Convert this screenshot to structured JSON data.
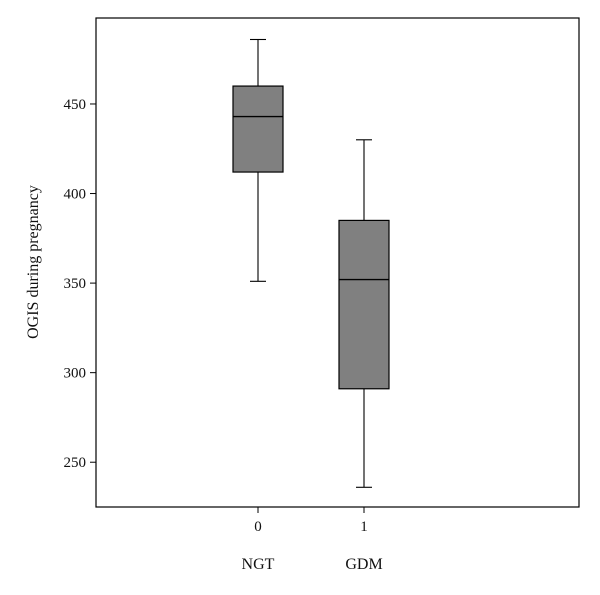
{
  "chart_data": {
    "type": "box",
    "ylabel": "OGIS during pregnancy",
    "ylim": [
      225,
      498
    ],
    "yticks": [
      250,
      300,
      350,
      400,
      450
    ],
    "categories": [
      {
        "code": "0",
        "name": "NGT",
        "min": 351,
        "q1": 412,
        "median": 443,
        "q3": 460,
        "max": 486
      },
      {
        "code": "1",
        "name": "GDM",
        "min": 236,
        "q1": 291,
        "median": 352,
        "q3": 385,
        "max": 430
      }
    ],
    "grid": false
  },
  "colors": {
    "box_fill": "#808080",
    "stroke": "#000000"
  }
}
